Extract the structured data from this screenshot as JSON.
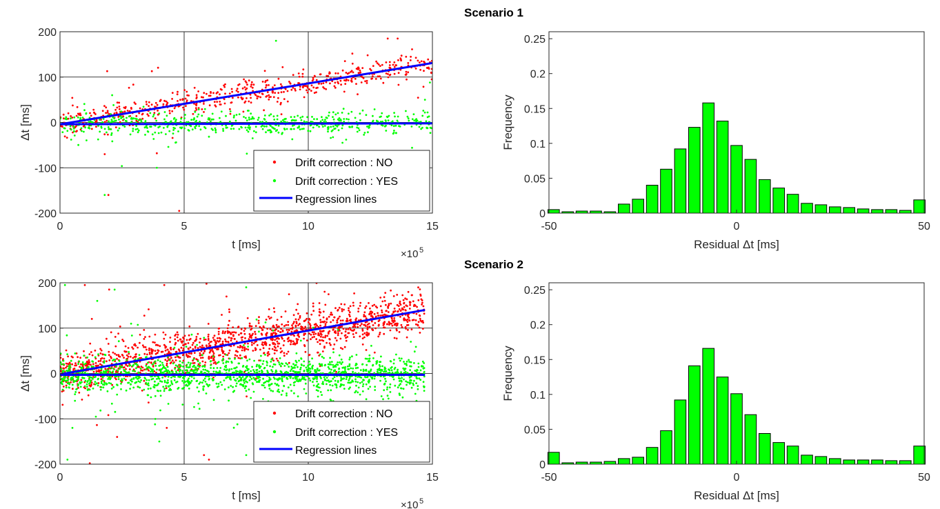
{
  "figure": {
    "scenario_titles": [
      "Scenario 1",
      "Scenario 2"
    ]
  },
  "colors": {
    "no_correction": "#ff0000",
    "yes_correction": "#00ff00",
    "regression": "#0000ff",
    "bar_fill": "#00ff00",
    "bar_edge": "#000000",
    "grid": "#000000"
  },
  "chart_data": [
    {
      "id": "s1-scatter",
      "type": "scatter",
      "title": "",
      "xlabel": "t [ms]",
      "ylabel": "Δt [ms]",
      "x_multiplier_label": "×10",
      "x_multiplier_exp": "5",
      "xlim": [
        0,
        15
      ],
      "ylim": [
        -200,
        200
      ],
      "xticks": [
        0,
        5,
        10,
        15
      ],
      "yticks": [
        -200,
        -100,
        0,
        100,
        200
      ],
      "xtick_labels": [
        "0",
        "5",
        "10",
        "15"
      ],
      "ytick_labels": [
        "-200",
        "-100",
        "0",
        "100",
        "200"
      ],
      "grid": true,
      "legend": {
        "position": "bottom-right",
        "entries": [
          "Drift correction : NO",
          "Drift correction : YES",
          "Regression lines"
        ]
      },
      "series": [
        {
          "name": "Drift correction : NO",
          "kind": "points",
          "n": 620,
          "x_range": [
            0,
            15
          ],
          "trend": [
            [
              0,
              -4
            ],
            [
              15,
              131
            ]
          ],
          "spread": 13,
          "outliers": [
            [
              1.9,
              113
            ],
            [
              1.8,
              -70
            ],
            [
              1.95,
              -160
            ],
            [
              4.8,
              -195
            ],
            [
              3.9,
              -68
            ],
            [
              3.7,
              113
            ],
            [
              13.2,
              185
            ],
            [
              13.6,
              185
            ]
          ]
        },
        {
          "name": "Drift correction : YES",
          "kind": "points",
          "n": 620,
          "x_range": [
            0,
            15
          ],
          "trend": [
            [
              0,
              -4
            ],
            [
              15,
              -2
            ]
          ],
          "spread": 11,
          "outliers": [
            [
              8.7,
              180
            ],
            [
              1.8,
              -160
            ],
            [
              3.9,
              -100
            ],
            [
              14.9,
              88
            ],
            [
              2.1,
              60
            ],
            [
              14.7,
              50
            ]
          ]
        },
        {
          "name": "Regression lines",
          "kind": "lines",
          "lines": [
            [
              [
                0,
                -4
              ],
              [
                15,
                131
              ]
            ],
            [
              [
                0,
                -4
              ],
              [
                15,
                -2
              ]
            ]
          ]
        }
      ]
    },
    {
      "id": "s1-hist",
      "type": "bar",
      "title": "",
      "xlabel": "Residual Δt [ms]",
      "ylabel": "Frequency",
      "xlim": [
        -50,
        50
      ],
      "ylim": [
        0,
        0.26
      ],
      "xticks": [
        -50,
        0,
        50
      ],
      "yticks": [
        0,
        0.05,
        0.1,
        0.15,
        0.2,
        0.25
      ],
      "xtick_labels": [
        "-50",
        "0",
        "50"
      ],
      "ytick_labels": [
        "0",
        "0.05",
        "0.1",
        "0.15",
        "0.2",
        "0.25"
      ],
      "grid": false,
      "bin_centers": [
        -48.75,
        -45,
        -41.25,
        -37.5,
        -33.75,
        -30,
        -26.25,
        -22.5,
        -18.75,
        -15,
        -11.25,
        -7.5,
        -3.75,
        0,
        3.75,
        7.5,
        11.25,
        15,
        18.75,
        22.5,
        26.25,
        30,
        33.75,
        37.5,
        41.25,
        45,
        48.75
      ],
      "bin_width": 3.75,
      "values": [
        0.005,
        0.002,
        0.003,
        0.003,
        0.002,
        0.013,
        0.02,
        0.04,
        0.063,
        0.092,
        0.123,
        0.158,
        0.132,
        0.097,
        0.077,
        0.048,
        0.036,
        0.027,
        0.014,
        0.012,
        0.009,
        0.008,
        0.006,
        0.005,
        0.005,
        0.004,
        0.019
      ]
    },
    {
      "id": "s2-scatter",
      "type": "scatter",
      "title": "",
      "xlabel": "t [ms]",
      "ylabel": "Δt [ms]",
      "x_multiplier_label": "×10",
      "x_multiplier_exp": "5",
      "xlim": [
        0,
        15
      ],
      "ylim": [
        -200,
        200
      ],
      "xticks": [
        0,
        5,
        10,
        15
      ],
      "yticks": [
        -200,
        -100,
        0,
        100,
        200
      ],
      "xtick_labels": [
        "0",
        "5",
        "10",
        "15"
      ],
      "ytick_labels": [
        "-200",
        "-100",
        "0",
        "100",
        "200"
      ],
      "grid": true,
      "legend": {
        "position": "bottom-right",
        "entries": [
          "Drift correction : NO",
          "Drift correction : YES",
          "Regression lines"
        ]
      },
      "series": [
        {
          "name": "Drift correction : NO",
          "kind": "points",
          "n": 1500,
          "x_range": [
            0,
            14.7
          ],
          "trend": [
            [
              0,
              -2
            ],
            [
              14.7,
              140
            ]
          ],
          "spread": 22,
          "outliers": [
            [
              5.9,
              198
            ],
            [
              4.2,
              195
            ],
            [
              1.0,
              195
            ],
            [
              5.8,
              -180
            ],
            [
              6.0,
              -190
            ],
            [
              1.2,
              -198
            ],
            [
              4.3,
              -120
            ],
            [
              2.3,
              -140
            ]
          ]
        },
        {
          "name": "Drift correction : YES",
          "kind": "points",
          "n": 1500,
          "x_range": [
            0,
            14.7
          ],
          "trend": [
            [
              0,
              -3
            ],
            [
              14.7,
              -3
            ]
          ],
          "spread": 18,
          "outliers": [
            [
              0.2,
              195
            ],
            [
              2.2,
              185
            ],
            [
              1.5,
              160
            ],
            [
              7.5,
              190
            ],
            [
              0.3,
              -190
            ],
            [
              7.5,
              -180
            ],
            [
              4.0,
              -150
            ],
            [
              9.0,
              -150
            ],
            [
              0.5,
              -120
            ]
          ]
        },
        {
          "name": "Regression lines",
          "kind": "lines",
          "lines": [
            [
              [
                0,
                -2
              ],
              [
                14.7,
                140
              ]
            ],
            [
              [
                0,
                -3
              ],
              [
                14.7,
                -3
              ]
            ]
          ]
        }
      ]
    },
    {
      "id": "s2-hist",
      "type": "bar",
      "title": "",
      "xlabel": "Residual Δt [ms]",
      "ylabel": "Frequency",
      "xlim": [
        -50,
        50
      ],
      "ylim": [
        0,
        0.26
      ],
      "xticks": [
        -50,
        0,
        50
      ],
      "yticks": [
        0,
        0.05,
        0.1,
        0.15,
        0.2,
        0.25
      ],
      "xtick_labels": [
        "-50",
        "0",
        "50"
      ],
      "ytick_labels": [
        "0",
        "0.05",
        "0.1",
        "0.15",
        "0.2",
        "0.25"
      ],
      "grid": false,
      "bin_centers": [
        -48.75,
        -45,
        -41.25,
        -37.5,
        -33.75,
        -30,
        -26.25,
        -22.5,
        -18.75,
        -15,
        -11.25,
        -7.5,
        -3.75,
        0,
        3.75,
        7.5,
        11.25,
        15,
        18.75,
        22.5,
        26.25,
        30,
        33.75,
        37.5,
        41.25,
        45,
        48.75
      ],
      "bin_width": 3.75,
      "values": [
        0.017,
        0.002,
        0.003,
        0.003,
        0.004,
        0.008,
        0.01,
        0.024,
        0.048,
        0.092,
        0.141,
        0.166,
        0.125,
        0.101,
        0.071,
        0.044,
        0.031,
        0.026,
        0.013,
        0.011,
        0.008,
        0.006,
        0.006,
        0.006,
        0.005,
        0.005,
        0.026
      ]
    }
  ]
}
